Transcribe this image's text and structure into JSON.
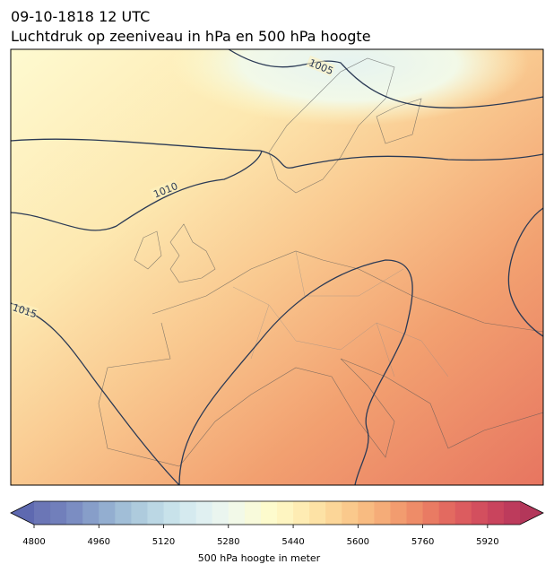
{
  "title_line1": "09-10-1818 12 UTC",
  "title_line2": "Luchtdruk op zeeniveau in hPa en 500 hPa hoogte",
  "map": {
    "isobar_labels": [
      1005,
      1010,
      1015
    ],
    "isobar_color": "#2b3a55"
  },
  "colorbar": {
    "label": "500 hPa hoogte in meter",
    "lim": [
      4800,
      6000
    ],
    "ticks": [
      4800,
      4960,
      5120,
      5280,
      5440,
      5600,
      5760,
      5920
    ],
    "under_color": "#5e69b0",
    "over_color": "#b3375a",
    "colors": [
      "#6b76b6",
      "#717fbb",
      "#7b8dc2",
      "#879ec9",
      "#93aed0",
      "#a1bed7",
      "#aecbdd",
      "#bbd7e4",
      "#c8e2ea",
      "#d5eaef",
      "#e0f0f1",
      "#eaf5ef",
      "#f2f9e8",
      "#f8fadb",
      "#fdfbcd",
      "#fef5c1",
      "#feecb3",
      "#fde2a5",
      "#fcd698",
      "#fac98c",
      "#f8bb81",
      "#f5ac78",
      "#f29c6f",
      "#ee8c68",
      "#e97b63",
      "#e36a60",
      "#dc5c5f",
      "#d34f5e",
      "#c9445d",
      "#bd3b5c"
    ]
  }
}
